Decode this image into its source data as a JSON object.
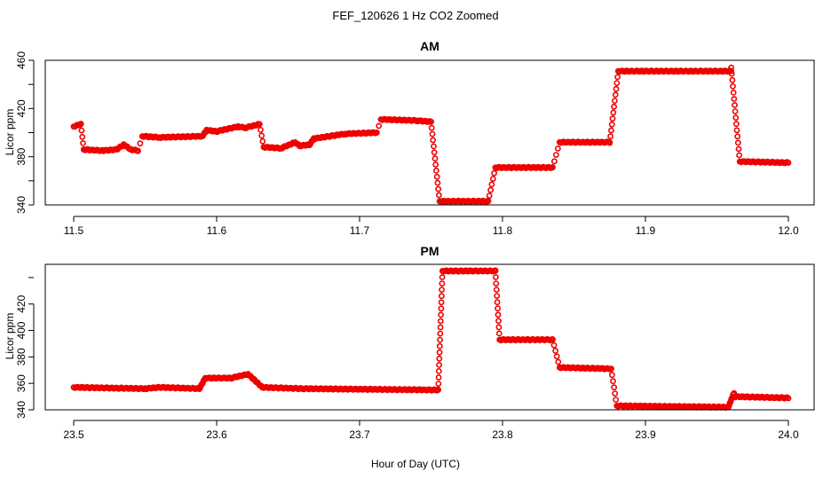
{
  "figure": {
    "title": "FEF_120626  1 Hz CO2 Zoomed",
    "xlabel": "Hour of Day (UTC)"
  },
  "colors": {
    "points": "#ee0000",
    "frame": "#000000"
  },
  "chart_data": [
    {
      "type": "scatter",
      "title": "AM",
      "xlabel": "Hour of Day (UTC)",
      "ylabel": "Licor ppm",
      "xlim": [
        11.5,
        12.0
      ],
      "ylim": [
        340,
        460
      ],
      "xticks": [
        "11.5",
        "11.6",
        "11.7",
        "11.8",
        "11.9",
        "12.0"
      ],
      "yticks": [
        "340",
        "380",
        "420",
        "460"
      ],
      "grid": false,
      "segments": [
        {
          "x": [
            11.5,
            11.505
          ],
          "y": [
            405,
            407
          ]
        },
        {
          "x": [
            11.505,
            11.507
          ],
          "y": [
            407,
            386
          ]
        },
        {
          "x": [
            11.507,
            11.52
          ],
          "y": [
            386,
            385
          ]
        },
        {
          "x": [
            11.52,
            11.53
          ],
          "y": [
            385,
            386
          ]
        },
        {
          "x": [
            11.53,
            11.535
          ],
          "y": [
            386,
            390
          ]
        },
        {
          "x": [
            11.535,
            11.54
          ],
          "y": [
            390,
            386
          ]
        },
        {
          "x": [
            11.54,
            11.545
          ],
          "y": [
            386,
            385
          ]
        },
        {
          "x": [
            11.545,
            11.548
          ],
          "y": [
            385,
            397
          ]
        },
        {
          "x": [
            11.548,
            11.56
          ],
          "y": [
            397,
            396
          ]
        },
        {
          "x": [
            11.56,
            11.59
          ],
          "y": [
            396,
            397
          ]
        },
        {
          "x": [
            11.59,
            11.593
          ],
          "y": [
            397,
            402
          ]
        },
        {
          "x": [
            11.593,
            11.6
          ],
          "y": [
            402,
            401
          ]
        },
        {
          "x": [
            11.6,
            11.615
          ],
          "y": [
            401,
            405
          ]
        },
        {
          "x": [
            11.615,
            11.62
          ],
          "y": [
            405,
            404
          ]
        },
        {
          "x": [
            11.62,
            11.63
          ],
          "y": [
            404,
            407
          ]
        },
        {
          "x": [
            11.63,
            11.633
          ],
          "y": [
            407,
            388
          ]
        },
        {
          "x": [
            11.633,
            11.645
          ],
          "y": [
            388,
            387
          ]
        },
        {
          "x": [
            11.645,
            11.655
          ],
          "y": [
            387,
            392
          ]
        },
        {
          "x": [
            11.655,
            11.658
          ],
          "y": [
            392,
            389
          ]
        },
        {
          "x": [
            11.658,
            11.665
          ],
          "y": [
            389,
            390
          ]
        },
        {
          "x": [
            11.665,
            11.668
          ],
          "y": [
            390,
            395
          ]
        },
        {
          "x": [
            11.668,
            11.69
          ],
          "y": [
            395,
            399
          ]
        },
        {
          "x": [
            11.69,
            11.712
          ],
          "y": [
            399,
            400
          ]
        },
        {
          "x": [
            11.712,
            11.715
          ],
          "y": [
            400,
            411
          ]
        },
        {
          "x": [
            11.715,
            11.74
          ],
          "y": [
            411,
            410
          ]
        },
        {
          "x": [
            11.74,
            11.75
          ],
          "y": [
            410,
            409
          ]
        },
        {
          "x": [
            11.75,
            11.756
          ],
          "y": [
            409,
            343
          ]
        },
        {
          "x": [
            11.756,
            11.79
          ],
          "y": [
            343,
            343
          ]
        },
        {
          "x": [
            11.79,
            11.795
          ],
          "y": [
            343,
            371
          ]
        },
        {
          "x": [
            11.795,
            11.835
          ],
          "y": [
            371,
            371
          ]
        },
        {
          "x": [
            11.835,
            11.84
          ],
          "y": [
            371,
            392
          ]
        },
        {
          "x": [
            11.84,
            11.875
          ],
          "y": [
            392,
            392
          ]
        },
        {
          "x": [
            11.875,
            11.881
          ],
          "y": [
            392,
            451
          ]
        },
        {
          "x": [
            11.881,
            11.96
          ],
          "y": [
            451,
            451
          ]
        },
        {
          "x": [
            11.96,
            11.966
          ],
          "y": [
            454,
            376
          ]
        },
        {
          "x": [
            11.966,
            12.0
          ],
          "y": [
            376,
            375
          ]
        }
      ]
    },
    {
      "type": "scatter",
      "title": "PM",
      "xlabel": "Hour of Day (UTC)",
      "ylabel": "Licor ppm",
      "xlim": [
        23.5,
        24.0
      ],
      "ylim": [
        340,
        450
      ],
      "xticks": [
        "23.5",
        "23.6",
        "23.7",
        "23.8",
        "23.9",
        "24.0"
      ],
      "yticks": [
        "340",
        "360",
        "380",
        "400",
        "420"
      ],
      "grid": false,
      "segments": [
        {
          "x": [
            23.5,
            23.55
          ],
          "y": [
            357,
            356
          ]
        },
        {
          "x": [
            23.55,
            23.56
          ],
          "y": [
            356,
            357
          ]
        },
        {
          "x": [
            23.56,
            23.588
          ],
          "y": [
            357,
            356
          ]
        },
        {
          "x": [
            23.588,
            23.592
          ],
          "y": [
            356,
            364
          ]
        },
        {
          "x": [
            23.592,
            23.61
          ],
          "y": [
            364,
            364
          ]
        },
        {
          "x": [
            23.61,
            23.622
          ],
          "y": [
            364,
            367
          ]
        },
        {
          "x": [
            23.622,
            23.632
          ],
          "y": [
            367,
            357
          ]
        },
        {
          "x": [
            23.632,
            23.66
          ],
          "y": [
            357,
            356
          ]
        },
        {
          "x": [
            23.66,
            23.755
          ],
          "y": [
            356,
            355
          ]
        },
        {
          "x": [
            23.755,
            23.758
          ],
          "y": [
            355,
            445
          ]
        },
        {
          "x": [
            23.758,
            23.795
          ],
          "y": [
            445,
            445
          ]
        },
        {
          "x": [
            23.795,
            23.798
          ],
          "y": [
            445,
            393
          ]
        },
        {
          "x": [
            23.798,
            23.835
          ],
          "y": [
            393,
            393
          ]
        },
        {
          "x": [
            23.835,
            23.84
          ],
          "y": [
            393,
            372
          ]
        },
        {
          "x": [
            23.84,
            23.876
          ],
          "y": [
            372,
            371
          ]
        },
        {
          "x": [
            23.876,
            23.88
          ],
          "y": [
            371,
            343
          ]
        },
        {
          "x": [
            23.88,
            23.958
          ],
          "y": [
            343,
            342
          ]
        },
        {
          "x": [
            23.958,
            23.962
          ],
          "y": [
            342,
            353
          ]
        },
        {
          "x": [
            23.962,
            24.0
          ],
          "y": [
            350,
            349
          ]
        }
      ]
    }
  ]
}
